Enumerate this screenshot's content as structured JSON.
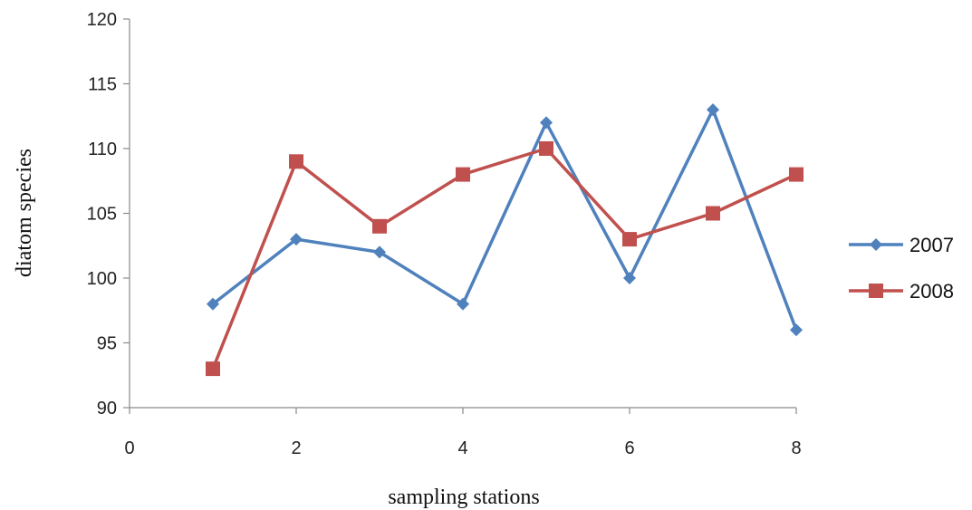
{
  "chart_data": {
    "type": "line",
    "title": "",
    "xlabel": "sampling stations",
    "ylabel": "diatom species",
    "xlim": [
      0,
      8
    ],
    "ylim": [
      90,
      120
    ],
    "x_ticks": [
      0,
      2,
      4,
      6,
      8
    ],
    "y_ticks": [
      90,
      95,
      100,
      105,
      110,
      115,
      120
    ],
    "grid": false,
    "legend_position": "right",
    "x": [
      1,
      2,
      3,
      4,
      5,
      6,
      7,
      8
    ],
    "series": [
      {
        "name": "2007",
        "values": [
          98,
          103,
          102,
          98,
          112,
          100,
          113,
          96
        ],
        "color": "#4F81BD",
        "marker": "diamond"
      },
      {
        "name": "2008",
        "values": [
          93,
          109,
          104,
          108,
          110,
          103,
          105,
          108
        ],
        "color": "#C0504D",
        "marker": "square"
      }
    ]
  }
}
